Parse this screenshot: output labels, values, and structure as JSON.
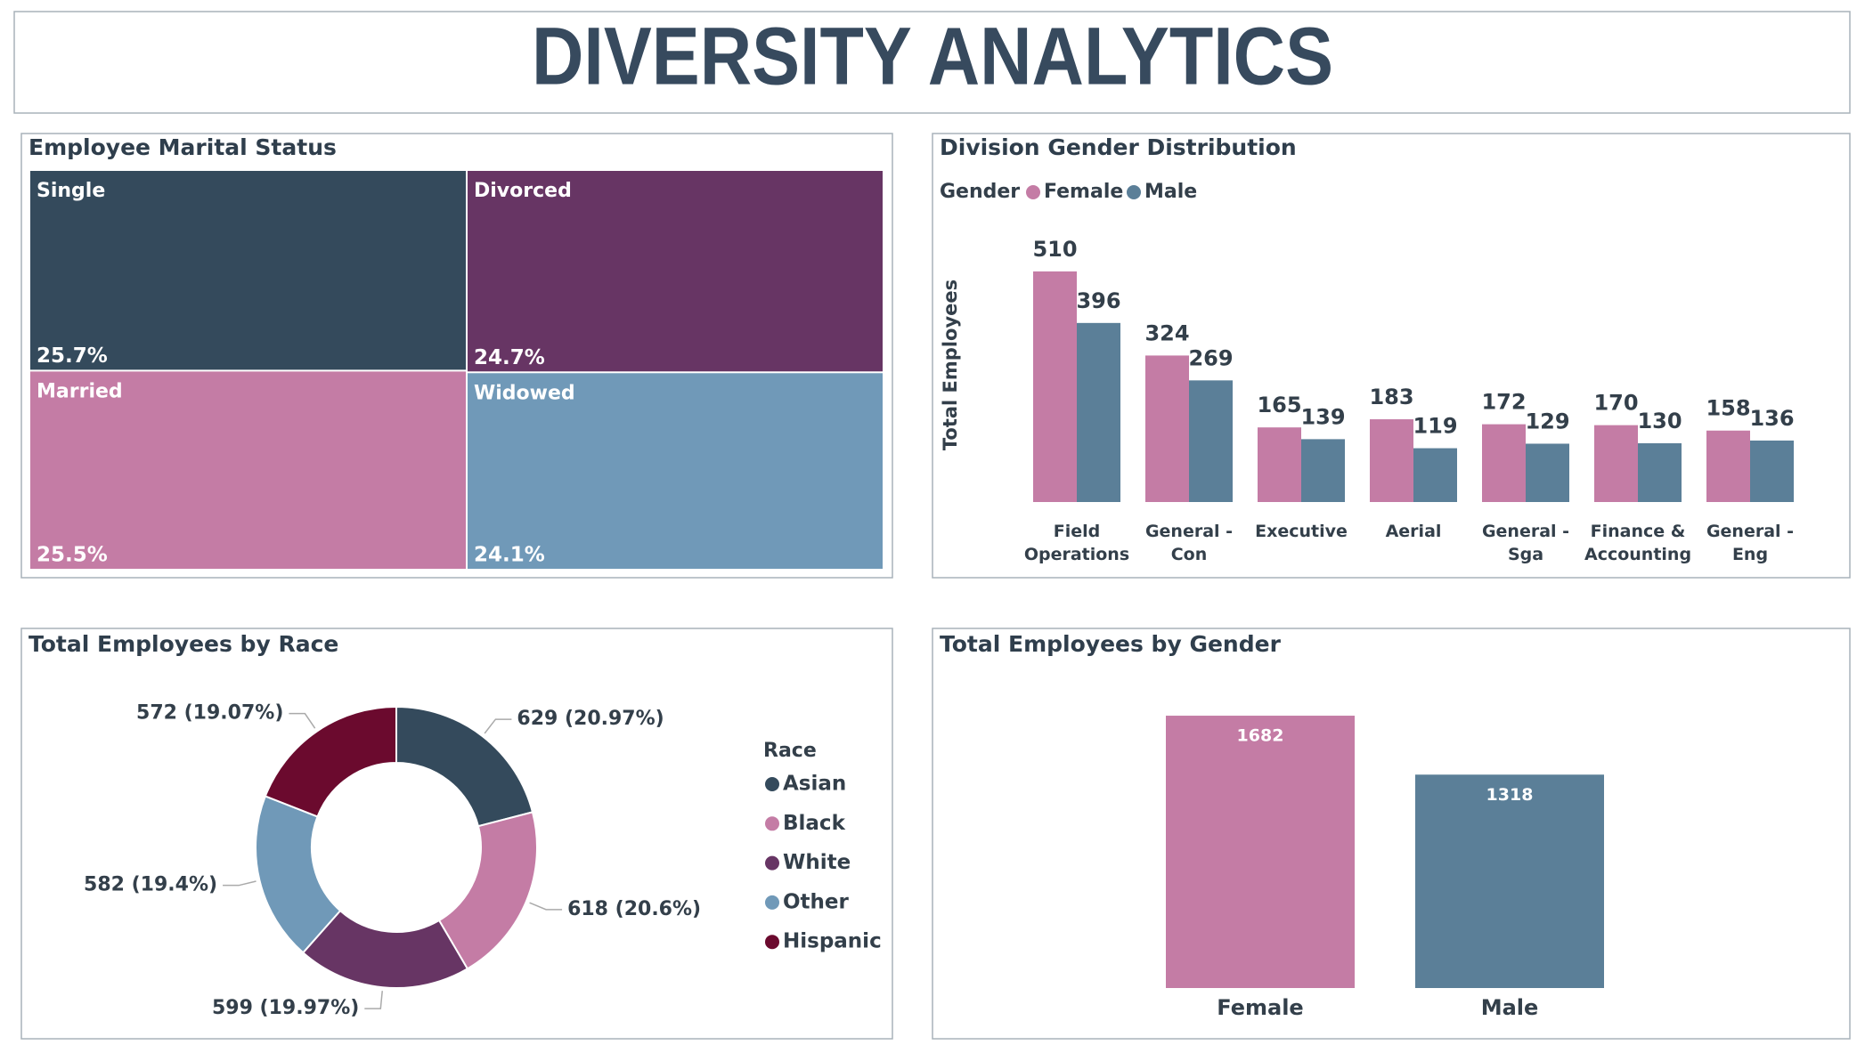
{
  "title": "DIVERSITY ANALYTICS",
  "chart_data": [
    {
      "type": "treemap",
      "title": "Employee Marital Status",
      "categories": [
        "Single",
        "Married",
        "Divorced",
        "Widowed"
      ],
      "values": [
        25.7,
        25.5,
        24.7,
        24.1
      ],
      "value_labels": [
        "25.7%",
        "25.5%",
        "24.7%",
        "24.1%"
      ],
      "colors": [
        "#344a5c",
        "#c47ca5",
        "#673564",
        "#7099b8"
      ]
    },
    {
      "type": "grouped-bar",
      "title": "Division Gender Distribution",
      "legend_title": "Gender",
      "ylabel": "Total Employees",
      "categories": [
        "Field Operations",
        "General - Con",
        "Executive",
        "Aerial",
        "General - Sga",
        "Finance & Accounting",
        "General - Eng"
      ],
      "series": [
        {
          "name": "Female",
          "color": "#c47ca5",
          "values": [
            510,
            324,
            165,
            183,
            172,
            170,
            158
          ]
        },
        {
          "name": "Male",
          "color": "#5b7f98",
          "values": [
            396,
            269,
            139,
            119,
            129,
            130,
            136
          ]
        }
      ]
    },
    {
      "type": "donut",
      "title": "Total Employees by Race",
      "legend_title": "Race",
      "categories": [
        "Asian",
        "Black",
        "White",
        "Other",
        "Hispanic"
      ],
      "values": [
        629,
        618,
        599,
        582,
        572
      ],
      "value_labels": [
        "629 (20.97%)",
        "618 (20.6%)",
        "599 (19.97%)",
        "582 (19.4%)",
        "572 (19.07%)"
      ],
      "colors": [
        "#344a5c",
        "#c47ca5",
        "#673564",
        "#7099b8",
        "#6b0a2e"
      ]
    },
    {
      "type": "bar",
      "title": "Total Employees by Gender",
      "categories": [
        "Female",
        "Male"
      ],
      "values": [
        1682,
        1318
      ],
      "colors": [
        "#c47ca5",
        "#5b7f98"
      ]
    }
  ]
}
